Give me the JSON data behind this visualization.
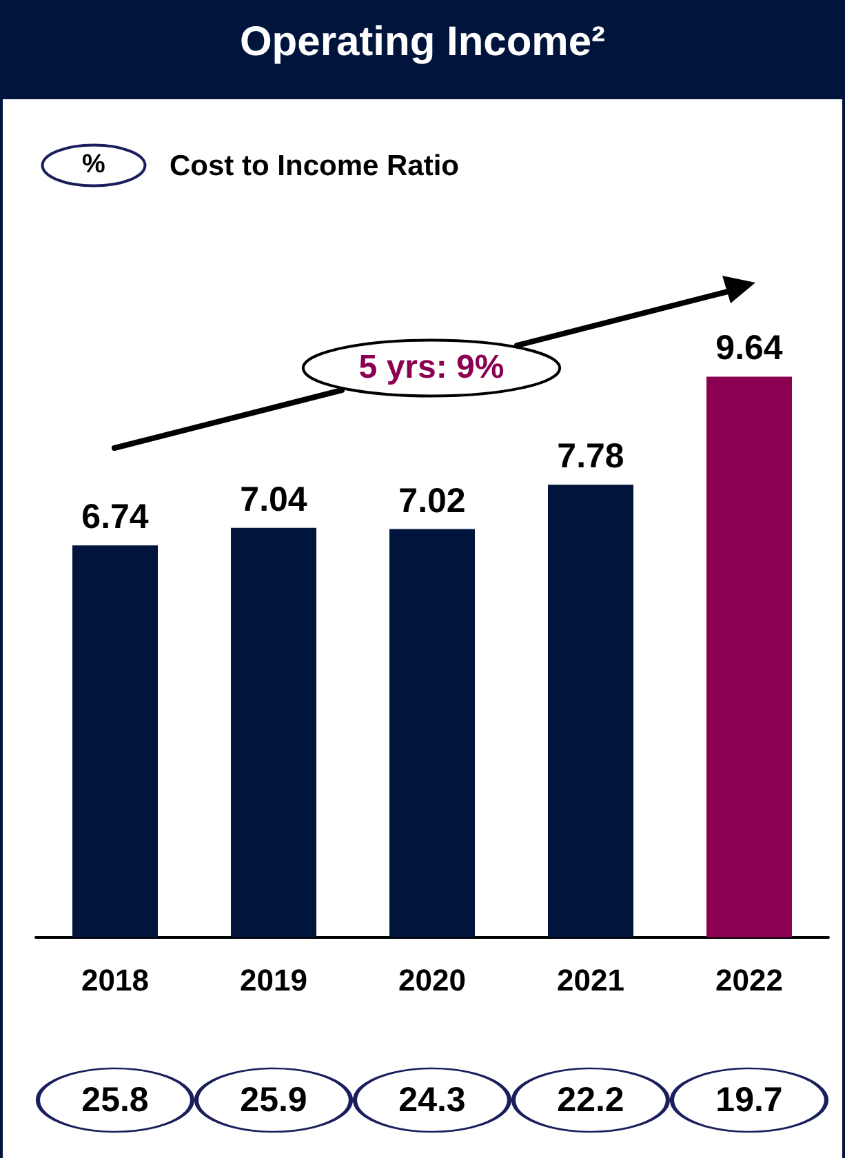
{
  "chart_data": [
    {
      "type": "bar",
      "title": "Operating Income²",
      "categories": [
        "2018",
        "2019",
        "2020",
        "2021",
        "2022"
      ],
      "values": [
        6.74,
        7.04,
        7.02,
        7.78,
        9.64
      ],
      "colors": [
        "#00143c",
        "#00143c",
        "#00143c",
        "#00143c",
        "#8b0050"
      ],
      "data_labels": true,
      "annotations": [
        "5 yrs: 9%"
      ]
    },
    {
      "type": "other",
      "title": "Cost to Income Ratio",
      "ylabel": "%",
      "categories": [
        null,
        null,
        null,
        null,
        null
      ],
      "values": [
        25.8,
        25.9,
        24.3,
        22.2,
        19.7
      ],
      "color": "#1a1f5c",
      "data_labels": true
    }
  ]
}
